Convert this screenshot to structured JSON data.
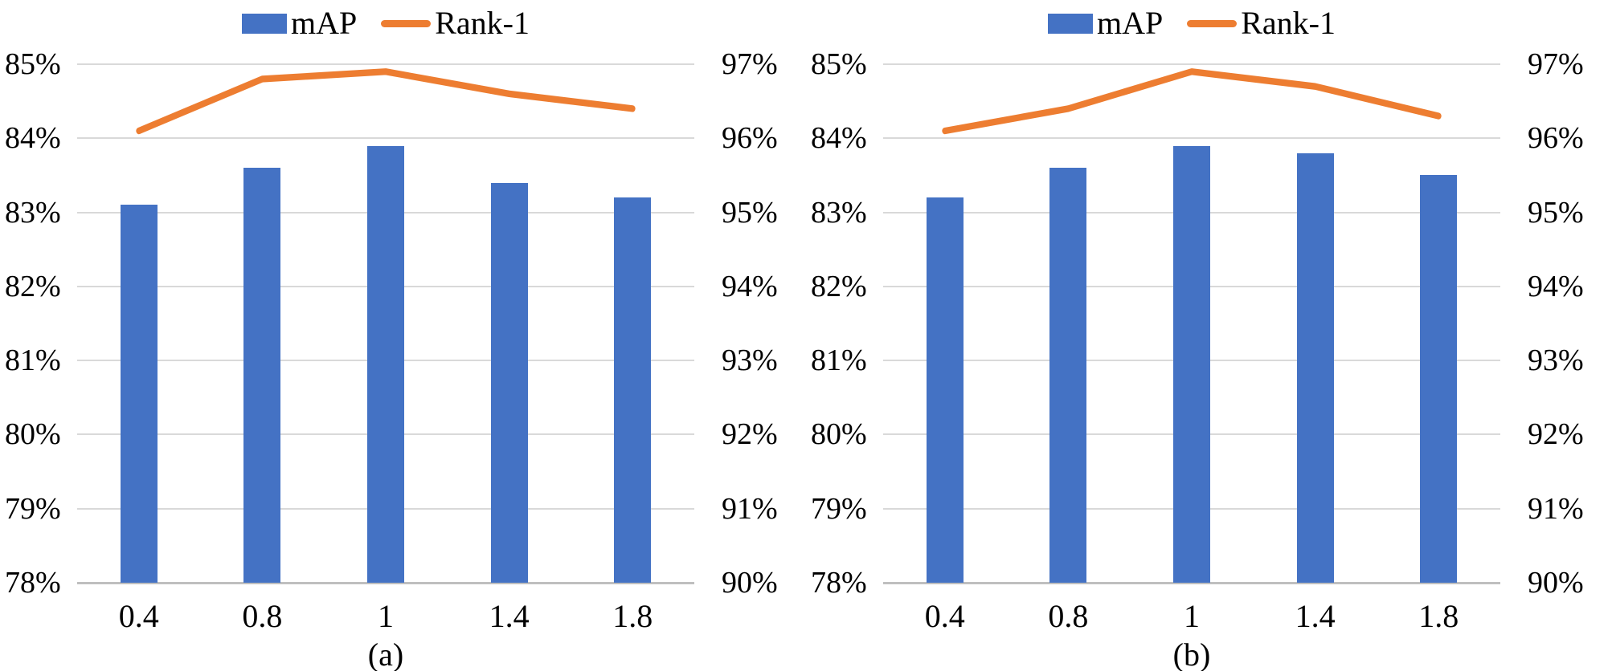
{
  "colors": {
    "bar": "#4472C4",
    "line": "#ED7D31",
    "gridline": "#D9D9D9",
    "baseline": "#BFBFBF",
    "text": "#000000"
  },
  "chart_data": [
    {
      "type": "bar",
      "subtype": "bar+line-dual-axis",
      "caption": "(a)",
      "categories": [
        "0.4",
        "0.8",
        "1",
        "1.4",
        "1.8"
      ],
      "series": [
        {
          "name": "mAP",
          "type": "bar",
          "axis": "left",
          "values": [
            83.1,
            83.6,
            83.9,
            83.4,
            83.2
          ]
        },
        {
          "name": "Rank-1",
          "type": "line",
          "axis": "right",
          "values": [
            96.1,
            96.8,
            96.9,
            96.6,
            96.4
          ]
        }
      ],
      "left_axis": {
        "min": 78,
        "max": 85,
        "ticks": [
          "85%",
          "84%",
          "83%",
          "82%",
          "81%",
          "80%",
          "79%",
          "78%"
        ]
      },
      "right_axis": {
        "min": 90,
        "max": 97,
        "ticks": [
          "97%",
          "96%",
          "95%",
          "94%",
          "93%",
          "92%",
          "91%",
          "90%"
        ]
      },
      "legend_position": "top",
      "grid": true
    },
    {
      "type": "bar",
      "subtype": "bar+line-dual-axis",
      "caption": "(b)",
      "categories": [
        "0.4",
        "0.8",
        "1",
        "1.4",
        "1.8"
      ],
      "series": [
        {
          "name": "mAP",
          "type": "bar",
          "axis": "left",
          "values": [
            83.2,
            83.6,
            83.9,
            83.8,
            83.5
          ]
        },
        {
          "name": "Rank-1",
          "type": "line",
          "axis": "right",
          "values": [
            96.1,
            96.4,
            96.9,
            96.7,
            96.3
          ]
        }
      ],
      "left_axis": {
        "min": 78,
        "max": 85,
        "ticks": [
          "85%",
          "84%",
          "83%",
          "82%",
          "81%",
          "80%",
          "79%",
          "78%"
        ]
      },
      "right_axis": {
        "min": 90,
        "max": 97,
        "ticks": [
          "97%",
          "96%",
          "95%",
          "94%",
          "93%",
          "92%",
          "91%",
          "90%"
        ]
      },
      "legend_position": "top",
      "grid": true
    }
  ]
}
